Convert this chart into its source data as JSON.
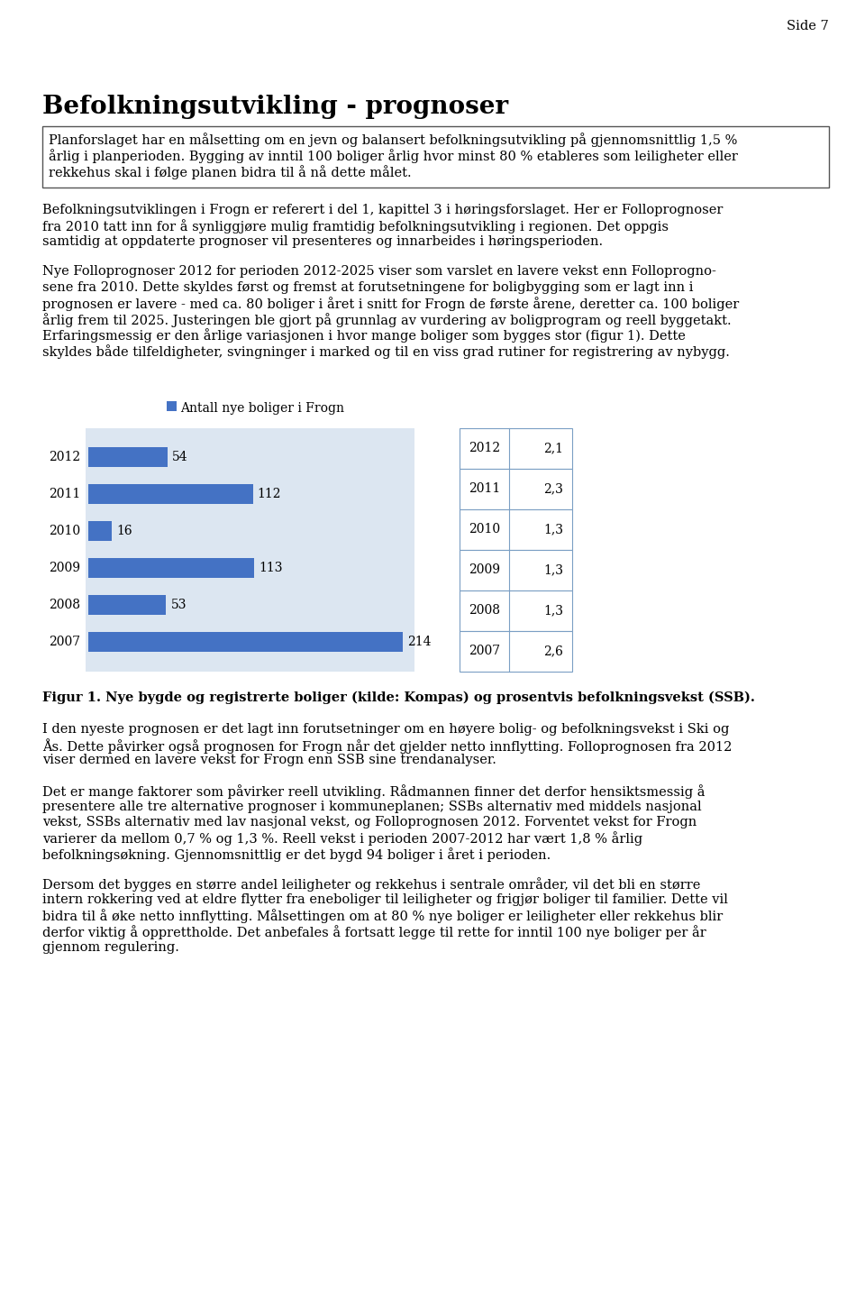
{
  "page_number": "Side 7",
  "title": "Befolkningsutvikling - prognoser",
  "box_text_lines": [
    "Planforslaget har en målsetting om en jevn og balansert befolkningsutvikling på gjennomsnittlig 1,5 %",
    "årlig i planperioden. Bygging av inntil 100 boliger årlig hvor minst 80 % etableres som leiligheter eller",
    "rekkehus skal i følge planen bidra til å nå dette målet."
  ],
  "para1_lines": [
    "Befolkningsutviklingen i Frogn er referert i del 1, kapittel 3 i høringsforslaget. Her er Folloprognoser",
    "fra 2010 tatt inn for å synliggjøre mulig framtidig befolkningsutvikling i regionen. Det oppgis",
    "samtidig at oppdaterte prognoser vil presenteres og innarbeides i høringsperioden."
  ],
  "para2_lines": [
    "Nye Folloprognoser 2012 for perioden 2012-2025 viser som varslet en lavere vekst enn Folloprogno-",
    "sene fra 2010. Dette skyldes først og fremst at forutsetningene for boligbygging som er lagt inn i",
    "prognosen er lavere - med ca. 80 boliger i året i snitt for Frogn de første årene, deretter ca. 100 boliger",
    "årlig frem til 2025. Justeringen ble gjort på grunnlag av vurdering av boligprogram og reell byggetakt.",
    "Erfaringsmessig er den årlige variasjonen i hvor mange boliger som bygges stor (figur 1). Dette",
    "skyldes både tilfeldigheter, svingninger i marked og til en viss grad rutiner for registrering av nybygg."
  ],
  "legend_label": "Antall nye boliger i Frogn",
  "bar_color": "#4472C4",
  "bar_bg_color": "#DCE6F1",
  "years": [
    "2012",
    "2011",
    "2010",
    "2009",
    "2008",
    "2007"
  ],
  "values": [
    54,
    112,
    16,
    113,
    53,
    214
  ],
  "table_years": [
    "2012",
    "2011",
    "2010",
    "2009",
    "2008",
    "2007"
  ],
  "table_values": [
    "2,1",
    "2,3",
    "1,3",
    "1,3",
    "1,3",
    "2,6"
  ],
  "fig_caption_bold": "Figur 1. Nye bygde og registrerte boliger (kilde: Kompas) og prosentvis befolkningsvekst (SSB).",
  "fig_caption_full": "Figur 1. Nye bygde og registrerte boliger (kilde: Kompas) og prosentvis befolkningsvekst (SSB).",
  "para3_lines": [
    "I den nyeste prognosen er det lagt inn forutsetninger om en høyere bolig- og befolkningsvekst i Ski og",
    "Ås. Dette påvirker også prognosen for Frogn når det gjelder netto innflytting. Folloprognosen fra 2012",
    "viser dermed en lavere vekst for Frogn enn SSB sine trendanalyser."
  ],
  "para4_lines": [
    "Det er mange faktorer som påvirker reell utvikling. Rådmannen finner det derfor hensiktsmessig å",
    "presentere alle tre alternative prognoser i kommuneplanen; SSBs alternativ med middels nasjonal",
    "vekst, SSBs alternativ med lav nasjonal vekst, og Folloprognosen 2012. Forventet vekst for Frogn",
    "varierer da mellom 0,7 % og 1,3 %. Reell vekst i perioden 2007-2012 har vært 1,8 % årlig",
    "befolkningsøkning. Gjennomsnittlig er det bygd 94 boliger i året i perioden."
  ],
  "para5_lines": [
    "Dersom det bygges en større andel leiligheter og rekkehus i sentrale områder, vil det bli en større",
    "intern rokkering ved at eldre flytter fra eneboliger til leiligheter og frigjør boliger til familier. Dette vil",
    "bidra til å øke netto innflytting. Målsettingen om at 80 % nye boliger er leiligheter eller rekkehus blir",
    "derfor viktig å opprettholde. Det anbefales å fortsatt legge til rette for inntil 100 nye boliger per år",
    "gjennom regulering."
  ],
  "bg_color": "#FFFFFF",
  "text_color": "#000000",
  "font_size_title": 20,
  "font_size_body": 10.5,
  "font_size_small": 10
}
